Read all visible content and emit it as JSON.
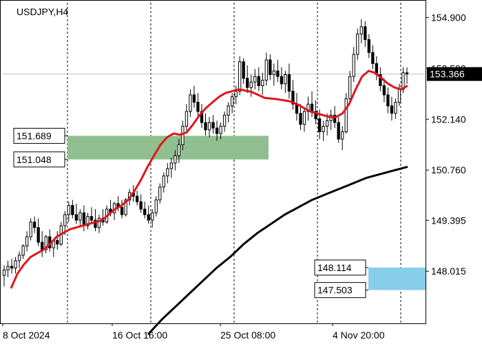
{
  "chart_data": {
    "type": "candlestick",
    "title": "USDJPY,H4",
    "y_axis": {
      "ticks": [
        154.9,
        153.52,
        152.14,
        150.76,
        149.395,
        148.015
      ],
      "tick_labels": [
        "154.900",
        "153.520",
        "152.140",
        "150.760",
        "149.395",
        "148.015"
      ],
      "range": [
        146.6,
        155.3
      ]
    },
    "x_axis": {
      "labels": [
        "8 Oct 2024",
        "16 Oct 16:00",
        "25 Oct 08:00",
        "4 Nov 20:00"
      ]
    },
    "current_price": {
      "value": 153.366,
      "label": "153.366"
    },
    "zones": [
      {
        "name": "resistance-zone",
        "upper": 151.689,
        "lower": 151.048,
        "upper_label": "151.689",
        "lower_label": "151.048",
        "color": "#8fbf8f"
      },
      {
        "name": "support-zone",
        "upper": 148.114,
        "lower": 147.503,
        "upper_label": "148.114",
        "lower_label": "147.503",
        "color": "#87ceeb"
      }
    ],
    "colors": {
      "candle": "#000000",
      "fast_ma": "#e0141a",
      "slow_ma": "#000000"
    },
    "candles": [
      [
        147.9,
        148.18,
        147.6,
        148.05
      ],
      [
        148.05,
        148.3,
        147.85,
        148.15
      ],
      [
        148.15,
        148.35,
        147.95,
        148.1
      ],
      [
        148.1,
        148.4,
        147.95,
        148.3
      ],
      [
        148.3,
        148.55,
        148.1,
        148.45
      ],
      [
        148.45,
        148.75,
        148.35,
        148.7
      ],
      [
        148.7,
        149.1,
        148.55,
        148.95
      ],
      [
        148.95,
        149.45,
        148.85,
        149.35
      ],
      [
        149.35,
        149.5,
        149.05,
        149.2
      ],
      [
        149.2,
        149.45,
        148.7,
        148.8
      ],
      [
        148.8,
        149.1,
        148.4,
        148.6
      ],
      [
        148.6,
        149.0,
        148.5,
        148.95
      ],
      [
        148.95,
        149.15,
        148.55,
        148.65
      ],
      [
        148.65,
        148.9,
        148.4,
        148.85
      ],
      [
        148.85,
        149.1,
        148.6,
        148.75
      ],
      [
        148.75,
        149.35,
        148.7,
        149.25
      ],
      [
        149.25,
        149.65,
        149.0,
        149.55
      ],
      [
        149.55,
        149.9,
        149.35,
        149.8
      ],
      [
        149.8,
        149.95,
        149.45,
        149.55
      ],
      [
        149.55,
        149.85,
        149.3,
        149.4
      ],
      [
        149.4,
        149.7,
        149.2,
        149.6
      ],
      [
        149.6,
        149.8,
        149.1,
        149.25
      ],
      [
        149.25,
        149.6,
        149.15,
        149.5
      ],
      [
        149.5,
        149.75,
        149.3,
        149.4
      ],
      [
        149.4,
        149.7,
        149.1,
        149.2
      ],
      [
        149.2,
        149.55,
        149.05,
        149.45
      ],
      [
        149.45,
        149.7,
        149.25,
        149.35
      ],
      [
        149.35,
        149.8,
        149.3,
        149.7
      ],
      [
        149.7,
        149.95,
        149.5,
        149.6
      ],
      [
        149.6,
        149.9,
        149.4,
        149.85
      ],
      [
        149.85,
        150.05,
        149.65,
        149.75
      ],
      [
        149.75,
        149.95,
        149.45,
        149.55
      ],
      [
        149.55,
        150.0,
        149.5,
        149.95
      ],
      [
        149.95,
        150.25,
        149.8,
        150.15
      ],
      [
        150.15,
        150.35,
        149.9,
        150.05
      ],
      [
        150.05,
        150.2,
        149.8,
        149.9
      ],
      [
        149.9,
        150.1,
        149.6,
        149.7
      ],
      [
        149.7,
        149.9,
        149.45,
        149.55
      ],
      [
        149.55,
        149.8,
        149.3,
        149.4
      ],
      [
        149.4,
        149.7,
        149.2,
        149.6
      ],
      [
        149.6,
        150.05,
        149.5,
        149.95
      ],
      [
        149.95,
        150.4,
        149.85,
        150.3
      ],
      [
        150.3,
        150.7,
        150.15,
        150.6
      ],
      [
        150.6,
        150.95,
        150.4,
        150.8
      ],
      [
        150.8,
        151.1,
        150.55,
        150.95
      ],
      [
        150.95,
        151.3,
        150.75,
        151.15
      ],
      [
        151.15,
        151.6,
        150.95,
        151.45
      ],
      [
        151.45,
        152.1,
        151.3,
        151.95
      ],
      [
        151.95,
        152.55,
        151.8,
        152.35
      ],
      [
        152.35,
        152.95,
        152.2,
        152.8
      ],
      [
        152.8,
        153.05,
        152.45,
        152.6
      ],
      [
        152.6,
        152.85,
        152.15,
        152.35
      ],
      [
        152.35,
        152.55,
        151.9,
        152.05
      ],
      [
        152.05,
        152.3,
        151.7,
        151.85
      ],
      [
        151.85,
        152.2,
        151.65,
        152.05
      ],
      [
        152.05,
        152.25,
        151.75,
        151.9
      ],
      [
        151.9,
        152.1,
        151.55,
        151.75
      ],
      [
        151.75,
        152.05,
        151.6,
        151.95
      ],
      [
        151.95,
        152.35,
        151.8,
        152.25
      ],
      [
        152.25,
        152.6,
        152.05,
        152.5
      ],
      [
        152.5,
        152.85,
        152.3,
        152.75
      ],
      [
        152.75,
        153.05,
        152.55,
        152.9
      ],
      [
        152.9,
        153.85,
        152.8,
        153.7
      ],
      [
        153.7,
        153.8,
        153.1,
        153.25
      ],
      [
        153.25,
        153.6,
        152.85,
        153.0
      ],
      [
        153.0,
        153.35,
        152.75,
        153.15
      ],
      [
        153.15,
        153.5,
        152.95,
        153.3
      ],
      [
        153.3,
        153.55,
        152.9,
        153.05
      ],
      [
        153.05,
        153.4,
        152.8,
        153.2
      ],
      [
        153.2,
        153.95,
        153.05,
        153.75
      ],
      [
        153.75,
        153.9,
        153.2,
        153.35
      ],
      [
        153.35,
        153.65,
        153.05,
        153.45
      ],
      [
        153.45,
        153.75,
        153.15,
        153.3
      ],
      [
        153.3,
        153.55,
        152.95,
        153.1
      ],
      [
        153.1,
        153.45,
        152.85,
        153.35
      ],
      [
        153.35,
        153.65,
        152.7,
        152.9
      ],
      [
        152.9,
        153.2,
        152.4,
        152.55
      ],
      [
        152.55,
        152.85,
        152.1,
        152.3
      ],
      [
        152.3,
        152.55,
        151.85,
        152.0
      ],
      [
        152.0,
        152.45,
        151.8,
        152.35
      ],
      [
        152.35,
        152.75,
        152.1,
        152.55
      ],
      [
        152.55,
        152.9,
        152.2,
        152.35
      ],
      [
        152.35,
        152.65,
        152.0,
        152.15
      ],
      [
        152.15,
        152.4,
        151.6,
        151.8
      ],
      [
        151.8,
        152.1,
        151.55,
        151.95
      ],
      [
        151.95,
        152.3,
        151.7,
        152.1
      ],
      [
        152.1,
        152.4,
        151.85,
        152.25
      ],
      [
        152.25,
        152.5,
        151.9,
        152.05
      ],
      [
        152.05,
        152.2,
        151.5,
        151.6
      ],
      [
        151.6,
        151.95,
        151.3,
        151.8
      ],
      [
        151.8,
        152.85,
        151.75,
        152.7
      ],
      [
        152.7,
        153.45,
        152.55,
        153.3
      ],
      [
        153.3,
        154.1,
        153.15,
        153.9
      ],
      [
        153.9,
        154.6,
        153.75,
        154.45
      ],
      [
        154.45,
        154.85,
        154.2,
        154.65
      ],
      [
        154.65,
        154.8,
        154.1,
        154.3
      ],
      [
        154.3,
        154.45,
        153.8,
        153.95
      ],
      [
        153.95,
        154.15,
        153.5,
        153.65
      ],
      [
        153.65,
        153.85,
        153.2,
        153.35
      ],
      [
        153.35,
        153.55,
        152.9,
        153.05
      ],
      [
        153.05,
        153.25,
        152.6,
        152.8
      ],
      [
        152.8,
        153.0,
        152.3,
        152.5
      ],
      [
        152.5,
        152.75,
        152.1,
        152.3
      ],
      [
        152.3,
        152.7,
        152.15,
        152.6
      ],
      [
        152.6,
        153.1,
        152.5,
        152.95
      ],
      [
        152.95,
        153.55,
        152.85,
        153.4
      ],
      [
        153.4,
        153.55,
        153.1,
        153.366
      ]
    ],
    "fast_ma": [
      147.55,
      147.95,
      148.2,
      148.4,
      148.5,
      148.6,
      148.75,
      148.95,
      149.05,
      149.15,
      149.2,
      149.25,
      149.3,
      149.35,
      149.4,
      149.55,
      149.7,
      149.8,
      149.95,
      150.2,
      150.5,
      150.85,
      151.15,
      151.45,
      151.65,
      151.75,
      151.72,
      151.78,
      152.0,
      152.25,
      152.45,
      152.6,
      152.75,
      152.85,
      152.9,
      152.95,
      152.92,
      152.88,
      152.8,
      152.72,
      152.7,
      152.68,
      152.65,
      152.62,
      152.55,
      152.45,
      152.35,
      152.3,
      152.25,
      152.2,
      152.2,
      152.3,
      152.55,
      152.95,
      153.3,
      153.45,
      153.4,
      153.25,
      153.1,
      153.0,
      152.95,
      153.05
    ],
    "slow_ma": [
      146.3,
      146.7,
      147.05,
      147.4,
      147.75,
      148.1,
      148.4,
      148.75,
      149.05,
      149.3,
      149.55,
      149.75,
      149.95,
      150.1,
      150.25,
      150.4,
      150.55,
      150.65,
      150.75,
      150.85
    ]
  }
}
